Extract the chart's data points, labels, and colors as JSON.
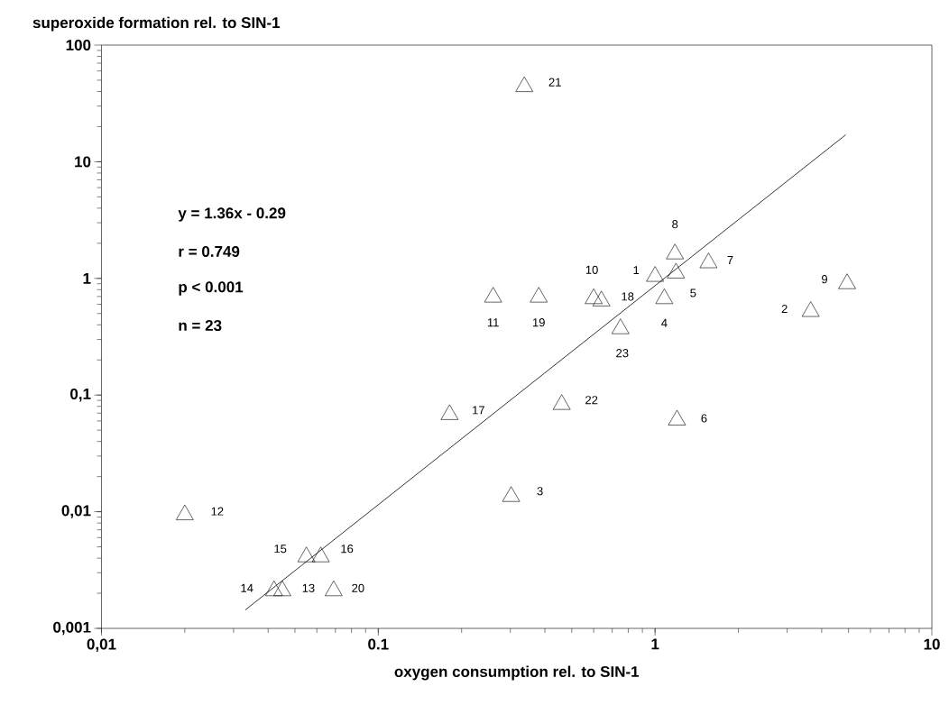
{
  "chart_data": {
    "type": "scatter",
    "ylabel": "superoxide formation rel. to SIN-1",
    "xlabel": "oxygen consumption rel. to SIN-1",
    "log": "xy",
    "grid": false,
    "xlim": [
      0.01,
      10
    ],
    "ylim": [
      0.001,
      100
    ],
    "xticks": [
      {
        "value": 0.01,
        "label": "0,01"
      },
      {
        "value": 0.1,
        "label": "0.1"
      },
      1,
      10
    ],
    "yticks": [
      {
        "value": 0.001,
        "label": "0,001"
      },
      {
        "value": 0.01,
        "label": "0,01"
      },
      {
        "value": 0.1,
        "label": "0,1"
      },
      1,
      10,
      100
    ],
    "series": [
      {
        "marker": "triangle",
        "color": "#000000",
        "x": [
          1.0,
          3.65,
          0.302,
          1.08,
          1.19,
          1.2,
          1.56,
          1.18,
          4.94,
          0.6,
          0.26,
          0.02,
          0.045,
          0.042,
          0.055,
          0.062,
          0.181,
          0.64,
          0.38,
          0.069,
          0.337,
          0.46,
          0.75
        ],
        "values": [
          1.04,
          0.52,
          0.0135,
          0.67,
          1.11,
          0.061,
          1.36,
          1.62,
          0.9,
          0.67,
          0.69,
          0.0094,
          0.0021,
          0.0021,
          0.0041,
          0.0041,
          0.068,
          0.64,
          0.69,
          0.0021,
          44,
          0.083,
          0.37
        ]
      },
      {
        "type": "line",
        "marker": "none",
        "color": "#000000",
        "x": [
          0.0331,
          4.88
        ],
        "values": [
          0.00144,
          17
        ]
      }
    ],
    "annotations": [
      {
        "text": "1",
        "x": 1.0,
        "y": 1.04
      },
      {
        "text": "2",
        "x": 3.65,
        "y": 0.52
      },
      {
        "text": "3",
        "x": 0.302,
        "y": 0.0135
      },
      {
        "text": "4",
        "x": 1.08,
        "y": 0.67
      },
      {
        "text": "5",
        "x": 1.19,
        "y": 1.11
      },
      {
        "text": "6",
        "x": 1.2,
        "y": 0.061
      },
      {
        "text": "7",
        "x": 1.56,
        "y": 1.36
      },
      {
        "text": "8",
        "x": 1.18,
        "y": 1.62
      },
      {
        "text": "9",
        "x": 4.94,
        "y": 0.9
      },
      {
        "text": "10",
        "x": 0.6,
        "y": 0.67
      },
      {
        "text": "11",
        "x": 0.26,
        "y": 0.69
      },
      {
        "text": "12",
        "x": 0.02,
        "y": 0.0094
      },
      {
        "text": "13",
        "x": 0.045,
        "y": 0.0021
      },
      {
        "text": "14",
        "x": 0.042,
        "y": 0.0021
      },
      {
        "text": "15",
        "x": 0.055,
        "y": 0.0041
      },
      {
        "text": "16",
        "x": 0.062,
        "y": 0.0041
      },
      {
        "text": "17",
        "x": 0.181,
        "y": 0.068
      },
      {
        "text": "18",
        "x": 0.64,
        "y": 0.64
      },
      {
        "text": "19",
        "x": 0.38,
        "y": 0.69
      },
      {
        "text": "20",
        "x": 0.069,
        "y": 0.0021
      },
      {
        "text": "21",
        "x": 0.337,
        "y": 44
      },
      {
        "text": "22",
        "x": 0.46,
        "y": 0.083
      },
      {
        "text": "23",
        "x": 0.75,
        "y": 0.37
      },
      "y = 1.36x - 0.29",
      "r = 0.749",
      "p < 0.001",
      "n = 23"
    ]
  }
}
